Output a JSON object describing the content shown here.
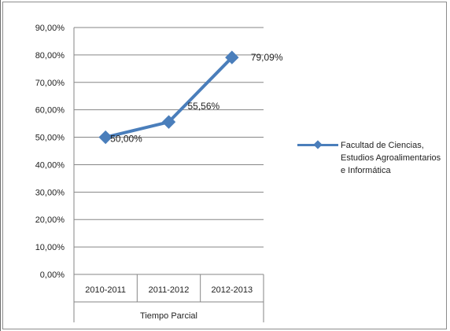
{
  "chart_data": {
    "type": "line",
    "title": "",
    "xlabel": "Tiempo Parcial",
    "ylabel": "",
    "ylim": [
      0,
      90
    ],
    "yticks": [
      "0,00%",
      "10,00%",
      "20,00%",
      "30,00%",
      "40,00%",
      "50,00%",
      "60,00%",
      "70,00%",
      "80,00%",
      "90,00%"
    ],
    "categories": [
      "2010-2011",
      "2011-2012",
      "2012-2013"
    ],
    "series": [
      {
        "name": "Facultad de Ciencias, Estudios Agroalimentarios e Informática",
        "values": [
          50.0,
          55.56,
          79.09
        ],
        "labels": [
          "50,00%",
          "55,56%",
          "79,09%"
        ],
        "color": "#4a7ebb"
      }
    ],
    "grid": true,
    "legend": "right"
  }
}
